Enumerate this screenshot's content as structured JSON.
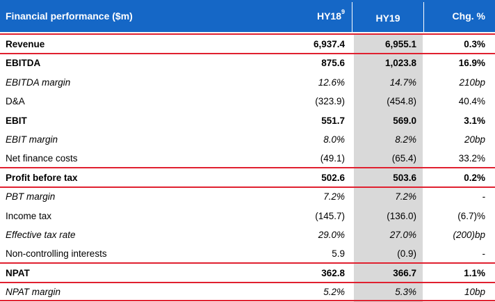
{
  "header": {
    "title": "Financial performance ($m)",
    "col1": "HY18",
    "col1_sup": "9",
    "col2": "HY19",
    "col3": "Chg. %"
  },
  "rows": [
    {
      "label": "Revenue",
      "hy18": "6,937.4",
      "hy19": "6,955.1",
      "chg": "0.3%"
    },
    {
      "label": "EBITDA",
      "hy18": "875.6",
      "hy19": "1,023.8",
      "chg": "16.9%"
    },
    {
      "label": "EBITDA margin",
      "hy18": "12.6%",
      "hy19": "14.7%",
      "chg": "210bp"
    },
    {
      "label": "D&A",
      "hy18": "(323.9)",
      "hy19": "(454.8)",
      "chg": "40.4%"
    },
    {
      "label": "EBIT",
      "hy18": "551.7",
      "hy19": "569.0",
      "chg": "3.1%"
    },
    {
      "label": "EBIT margin",
      "hy18": "8.0%",
      "hy19": "8.2%",
      "chg": "20bp"
    },
    {
      "label": "Net finance costs",
      "hy18": "(49.1)",
      "hy19": "(65.4)",
      "chg": "33.2%"
    },
    {
      "label": "Profit before tax",
      "hy18": "502.6",
      "hy19": "503.6",
      "chg": "0.2%"
    },
    {
      "label": "PBT margin",
      "hy18": "7.2%",
      "hy19": "7.2%",
      "chg": "-"
    },
    {
      "label": "Income tax",
      "hy18": "(145.7)",
      "hy19": "(136.0)",
      "chg": "(6.7)%"
    },
    {
      "label": "Effective tax rate",
      "hy18": "29.0%",
      "hy19": "27.0%",
      "chg": "(200)bp"
    },
    {
      "label": "Non-controlling interests",
      "hy18": "5.9",
      "hy19": "(0.9)",
      "chg": "-"
    },
    {
      "label": "NPAT",
      "hy18": "362.8",
      "hy19": "366.7",
      "chg": "1.1%"
    },
    {
      "label": "NPAT margin",
      "hy18": "5.2%",
      "hy19": "5.3%",
      "chg": "10bp"
    }
  ],
  "colors": {
    "header_bg": "#1567c6",
    "separator": "#e0202f",
    "hy19_shade": "#d9d9d9"
  }
}
